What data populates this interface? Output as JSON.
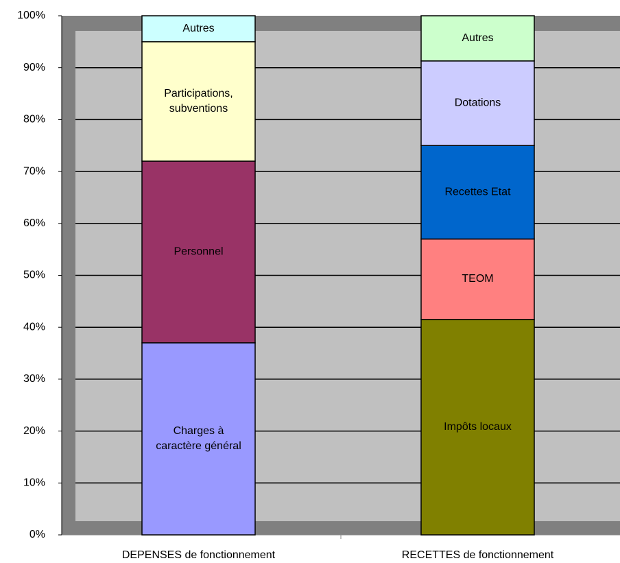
{
  "chart_data": {
    "type": "stacked-bar-100",
    "stacks": [
      {
        "category": "DEPENSES de fonctionnement",
        "segments": [
          {
            "label": "Charges à caractère général",
            "color": "#9999ff",
            "value": 37
          },
          {
            "label": "Personnel",
            "color": "#993366",
            "value": 35
          },
          {
            "label": "Participations, subventions",
            "color": "#ffffcc",
            "value": 23
          },
          {
            "label": "Autres",
            "color": "#ccffff",
            "value": 5
          }
        ]
      },
      {
        "category": "RECETTES de fonctionnement",
        "segments": [
          {
            "label": "Impôts locaux",
            "color": "#808000",
            "value": 41.5
          },
          {
            "label": "TEOM",
            "color": "#ff8080",
            "value": 15.5
          },
          {
            "label": "Recettes Etat",
            "color": "#0066cc",
            "value": 18
          },
          {
            "label": "Dotations",
            "color": "#ccccff",
            "value": 16.3
          },
          {
            "label": "Autres",
            "color": "#ccffcc",
            "value": 8.7
          }
        ]
      }
    ],
    "ylim": [
      0,
      100
    ],
    "yticks": [
      {
        "value": 0,
        "label": "0%"
      },
      {
        "value": 10,
        "label": "10%"
      },
      {
        "value": 20,
        "label": "20%"
      },
      {
        "value": 30,
        "label": "30%"
      },
      {
        "value": 40,
        "label": "40%"
      },
      {
        "value": 50,
        "label": "50%"
      },
      {
        "value": 60,
        "label": "60%"
      },
      {
        "value": 70,
        "label": "70%"
      },
      {
        "value": 80,
        "label": "80%"
      },
      {
        "value": 90,
        "label": "90%"
      },
      {
        "value": 100,
        "label": "100%"
      }
    ],
    "grid": true
  }
}
